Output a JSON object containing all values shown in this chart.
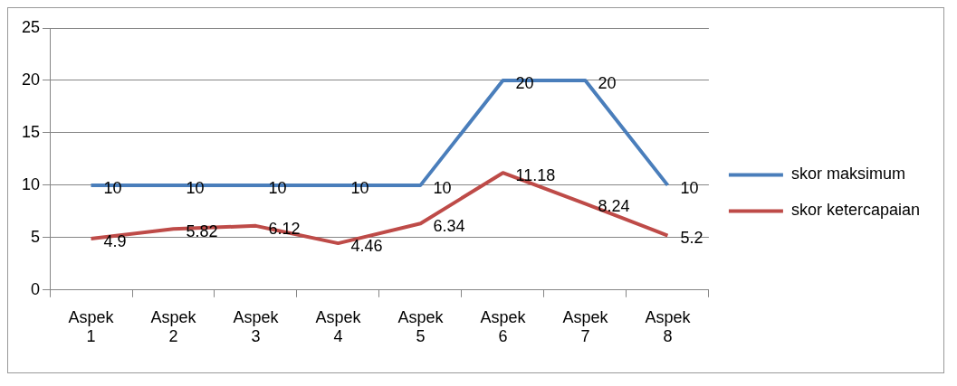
{
  "chart_data": {
    "type": "line",
    "categories": [
      "Aspek 1",
      "Aspek 2",
      "Aspek 3",
      "Aspek 4",
      "Aspek 5",
      "Aspek 6",
      "Aspek 7",
      "Aspek 8"
    ],
    "series": [
      {
        "name": "skor maksimum",
        "color": "#4a7ebb",
        "values": [
          10,
          10,
          10,
          10,
          10,
          20,
          20,
          10
        ]
      },
      {
        "name": "skor ketercapaian",
        "color": "#be4b48",
        "values": [
          4.9,
          5.82,
          6.12,
          4.46,
          6.34,
          11.18,
          8.24,
          5.2
        ]
      }
    ],
    "ylim": [
      0,
      25
    ],
    "yticks": [
      0,
      5,
      10,
      15,
      20,
      25
    ],
    "grid": "y",
    "legend": "right",
    "marker": "none",
    "line_style": "solid",
    "data_labels": true
  }
}
